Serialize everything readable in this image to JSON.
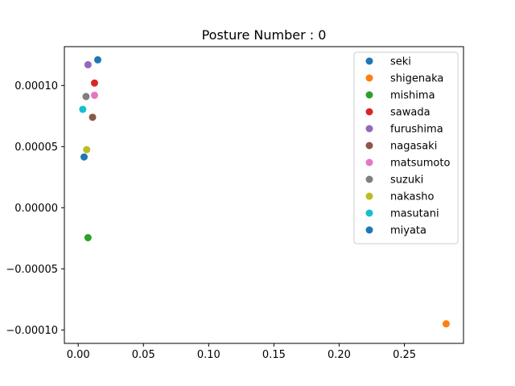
{
  "chart_data": {
    "type": "scatter",
    "title": "Posture Number : 0",
    "xlabel": "",
    "ylabel": "",
    "xlim": [
      -0.0106,
      0.2953
    ],
    "ylim": [
      -0.000111,
      0.0001318
    ],
    "x_ticks": [
      0.0,
      0.05,
      0.1,
      0.15,
      0.2,
      0.25
    ],
    "x_tick_labels": [
      "0.00",
      "0.05",
      "0.10",
      "0.15",
      "0.20",
      "0.25"
    ],
    "y_ticks": [
      -0.0001,
      -5e-05,
      0.0,
      5e-05,
      0.0001
    ],
    "y_tick_labels": [
      "−0.00010",
      "−0.00005",
      "0.00000",
      "0.00005",
      "0.00010"
    ],
    "grid": false,
    "legend_position": "top-right",
    "series": [
      {
        "name": "seki",
        "color": "#1f77b4",
        "x": 0.015,
        "y": 0.000121
      },
      {
        "name": "shigenaka",
        "color": "#ff7f0e",
        "x": 0.282,
        "y": -9.5e-05
      },
      {
        "name": "mishima",
        "color": "#2ca02c",
        "x": 0.0075,
        "y": -2.45e-05
      },
      {
        "name": "sawada",
        "color": "#d62728",
        "x": 0.0125,
        "y": 0.000102
      },
      {
        "name": "furushima",
        "color": "#9467bd",
        "x": 0.0075,
        "y": 0.000117
      },
      {
        "name": "nagasaki",
        "color": "#8c564b",
        "x": 0.011,
        "y": 7.4e-05
      },
      {
        "name": "matsumoto",
        "color": "#e377c2",
        "x": 0.0125,
        "y": 9.2e-05
      },
      {
        "name": "suzuki",
        "color": "#7f7f7f",
        "x": 0.006,
        "y": 9.1e-05
      },
      {
        "name": "nakasho",
        "color": "#bcbd22",
        "x": 0.0065,
        "y": 4.75e-05
      },
      {
        "name": "masutani",
        "color": "#17becf",
        "x": 0.0035,
        "y": 8.05e-05
      },
      {
        "name": "miyata",
        "color": "#1f77b4",
        "x": 0.0045,
        "y": 4.15e-05
      }
    ]
  }
}
